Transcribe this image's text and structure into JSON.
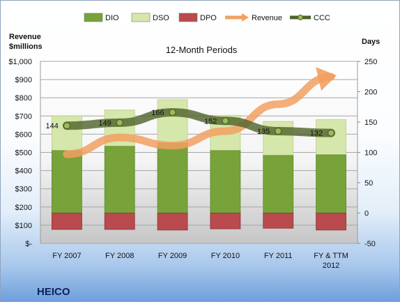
{
  "chart_data": {
    "type": "bar",
    "title": "12-Month Periods",
    "company": "HEICO",
    "left_axis_title": [
      "Revenue",
      "$millions"
    ],
    "right_axis_title": "Days",
    "categories": [
      [
        "FY 2007"
      ],
      [
        "FY 2008"
      ],
      [
        "FY 2009"
      ],
      [
        "FY 2010"
      ],
      [
        "FY 2011"
      ],
      [
        "FY & TTM",
        "2012"
      ]
    ],
    "left_ylim": [
      0,
      1000
    ],
    "left_ticks": [
      {
        "v": 0,
        "t": "$-"
      },
      {
        "v": 100,
        "t": "$100"
      },
      {
        "v": 200,
        "t": "$200"
      },
      {
        "v": 300,
        "t": "$300"
      },
      {
        "v": 400,
        "t": "$400"
      },
      {
        "v": 500,
        "t": "$500"
      },
      {
        "v": 600,
        "t": "$600"
      },
      {
        "v": 700,
        "t": "$700"
      },
      {
        "v": 800,
        "t": "$800"
      },
      {
        "v": 900,
        "t": "$900"
      },
      {
        "v": 1000,
        "t": "$1,000"
      }
    ],
    "right_ylim": [
      -50,
      250
    ],
    "right_ticks": [
      -50,
      0,
      50,
      100,
      150,
      200,
      250
    ],
    "series": [
      {
        "name": "DIO",
        "axis": "right",
        "color": "#77a33a",
        "values": [
          103,
          110,
          115,
          103,
          95,
          96
        ]
      },
      {
        "name": "DSO",
        "axis": "right",
        "color": "#d6e7ab",
        "values": [
          57,
          60,
          72,
          58,
          56,
          58
        ]
      },
      {
        "name": "DPO",
        "axis": "right",
        "color": "#b94a4d",
        "values": [
          -27,
          -27,
          -28,
          -26,
          -25,
          -28
        ]
      },
      {
        "name": "Revenue",
        "axis": "left",
        "color": "#f2a061",
        "values": [
          490,
          582,
          538,
          617,
          765,
          915
        ]
      },
      {
        "name": "CCC",
        "axis": "right",
        "color": "#4f6228",
        "values": [
          144,
          149,
          166,
          152,
          135,
          132
        ],
        "labels": [
          "144",
          "149",
          "166",
          "152",
          "135",
          "132"
        ]
      }
    ],
    "grid": true,
    "legend": "top"
  }
}
